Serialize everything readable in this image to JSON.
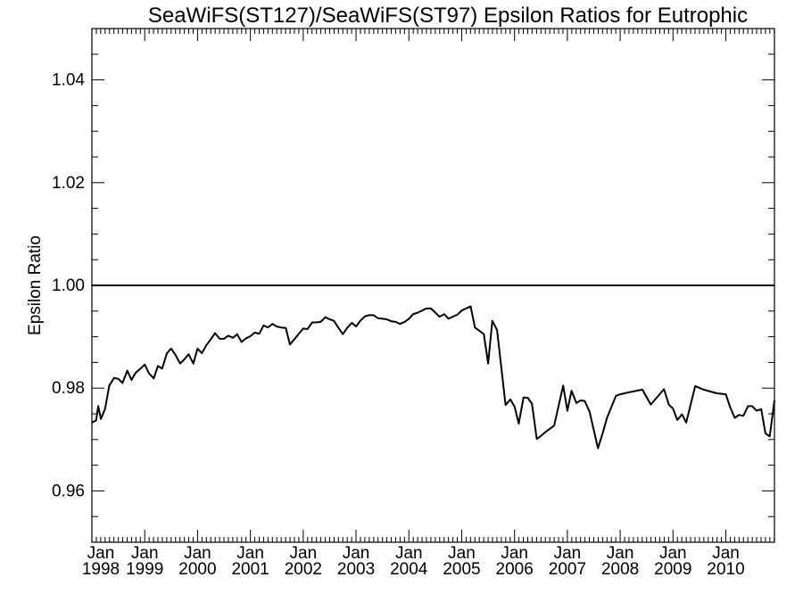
{
  "chart_data": {
    "type": "line",
    "title": "SeaWiFS(ST127)/SeaWiFS(ST97)  Epsilon Ratios for Eutrophic",
    "xlabel": "",
    "ylabel": "Epsilon Ratio",
    "xlim": [
      1998.0,
      2010.92
    ],
    "ylim": [
      0.95,
      1.05
    ],
    "yticks": [
      0.96,
      0.98,
      1.0,
      1.02,
      1.04
    ],
    "ytick_labels": [
      "0.96",
      "0.98",
      "1.00",
      "1.02",
      "1.04"
    ],
    "xticks": [
      {
        "year": 1998,
        "month": "Jan",
        "label": "1998"
      },
      {
        "year": 1999,
        "month": "Jan",
        "label": "1999"
      },
      {
        "year": 2000,
        "month": "Jan",
        "label": "2000"
      },
      {
        "year": 2001,
        "month": "Jan",
        "label": "2001"
      },
      {
        "year": 2002,
        "month": "Jan",
        "label": "2002"
      },
      {
        "year": 2003,
        "month": "Jan",
        "label": "2003"
      },
      {
        "year": 2004,
        "month": "Jan",
        "label": "2004"
      },
      {
        "year": 2005,
        "month": "Jan",
        "label": "2005"
      },
      {
        "year": 2006,
        "month": "Jan",
        "label": "2006"
      },
      {
        "year": 2007,
        "month": "Jan",
        "label": "2007"
      },
      {
        "year": 2008,
        "month": "Jan",
        "label": "2008"
      },
      {
        "year": 2009,
        "month": "Jan",
        "label": "2009"
      },
      {
        "year": 2010,
        "month": "Jan",
        "label": "2010"
      }
    ],
    "reference_line": {
      "y": 1.0
    },
    "grid": false,
    "colors": {
      "line": "#000000",
      "axis": "#000000"
    },
    "series": [
      {
        "x": [
          1998.0,
          1998.08,
          1998.12,
          1998.17,
          1998.25,
          1998.33,
          1998.42,
          1998.5,
          1998.58,
          1998.67,
          1998.75,
          1998.83,
          1998.92,
          1999.0,
          1999.08,
          1999.17,
          1999.25,
          1999.33,
          1999.42,
          1999.5,
          1999.58,
          1999.67,
          1999.75,
          1999.83,
          1999.92,
          2000.0,
          2000.08,
          2000.17,
          2000.25,
          2000.33,
          2000.42,
          2000.5,
          2000.58,
          2000.67,
          2000.75,
          2000.83,
          2000.92,
          2001.0,
          2001.08,
          2001.17,
          2001.25,
          2001.33,
          2001.42,
          2001.5,
          2001.58,
          2001.67,
          2001.75,
          2001.83,
          2002.0,
          2002.08,
          2002.17,
          2002.25,
          2002.33,
          2002.42,
          2002.5,
          2002.58,
          2002.67,
          2002.75,
          2002.83,
          2002.92,
          2003.0,
          2003.08,
          2003.17,
          2003.25,
          2003.33,
          2003.42,
          2003.5,
          2003.58,
          2003.67,
          2003.75,
          2003.83,
          2003.92,
          2004.0,
          2004.08,
          2004.17,
          2004.25,
          2004.33,
          2004.42,
          2004.5,
          2004.58,
          2004.67,
          2004.75,
          2004.83,
          2004.92,
          2005.0,
          2005.08,
          2005.17,
          2005.25,
          2005.42,
          2005.5,
          2005.58,
          2005.67,
          2005.75,
          2005.83,
          2005.92,
          2006.0,
          2006.08,
          2006.17,
          2006.25,
          2006.33,
          2006.42,
          2006.5,
          2006.58,
          2006.75,
          2006.92,
          2007.0,
          2007.08,
          2007.17,
          2007.25,
          2007.33,
          2007.42,
          2007.58,
          2007.67,
          2007.75,
          2007.92,
          2008.0,
          2008.17,
          2008.42,
          2008.58,
          2008.83,
          2008.92,
          2009.0,
          2009.08,
          2009.17,
          2009.25,
          2009.42,
          2009.58,
          2009.83,
          2010.0,
          2010.08,
          2010.17,
          2010.25,
          2010.33,
          2010.42,
          2010.5,
          2010.58,
          2010.67,
          2010.75,
          2010.83,
          2010.92
        ],
        "y": [
          0.9733,
          0.9737,
          0.9765,
          0.974,
          0.976,
          0.9805,
          0.982,
          0.9818,
          0.981,
          0.9834,
          0.9816,
          0.983,
          0.9838,
          0.9846,
          0.9829,
          0.9819,
          0.9843,
          0.9838,
          0.9868,
          0.9877,
          0.9865,
          0.9848,
          0.9856,
          0.9866,
          0.9848,
          0.9877,
          0.9868,
          0.9884,
          0.9895,
          0.9907,
          0.9896,
          0.9896,
          0.9902,
          0.9898,
          0.9905,
          0.989,
          0.9897,
          0.9901,
          0.9908,
          0.9906,
          0.9922,
          0.9918,
          0.9925,
          0.992,
          0.9918,
          0.9917,
          0.9885,
          0.9895,
          0.9916,
          0.9915,
          0.9928,
          0.9928,
          0.9929,
          0.9938,
          0.9934,
          0.9931,
          0.9917,
          0.9905,
          0.9917,
          0.9927,
          0.992,
          0.9931,
          0.994,
          0.9942,
          0.9942,
          0.9936,
          0.9935,
          0.9934,
          0.993,
          0.9929,
          0.9925,
          0.9929,
          0.9935,
          0.9944,
          0.9947,
          0.9951,
          0.9955,
          0.9955,
          0.9947,
          0.9939,
          0.9944,
          0.9935,
          0.9939,
          0.9943,
          0.9951,
          0.9955,
          0.9959,
          0.9918,
          0.9905,
          0.9848,
          0.9931,
          0.9913,
          0.984,
          0.9767,
          0.9778,
          0.9764,
          0.9731,
          0.9782,
          0.9781,
          0.977,
          0.9701,
          0.9707,
          0.9714,
          0.9727,
          0.9805,
          0.9756,
          0.9795,
          0.9771,
          0.9776,
          0.9775,
          0.9754,
          0.9683,
          0.9713,
          0.9742,
          0.9785,
          0.9788,
          0.9792,
          0.9797,
          0.9768,
          0.9798,
          0.9768,
          0.976,
          0.9738,
          0.9749,
          0.9733,
          0.9804,
          0.9797,
          0.979,
          0.9788,
          0.9763,
          0.9742,
          0.9748,
          0.9746,
          0.9765,
          0.9765,
          0.9756,
          0.9759,
          0.9712,
          0.9706,
          0.9776
        ]
      }
    ]
  }
}
